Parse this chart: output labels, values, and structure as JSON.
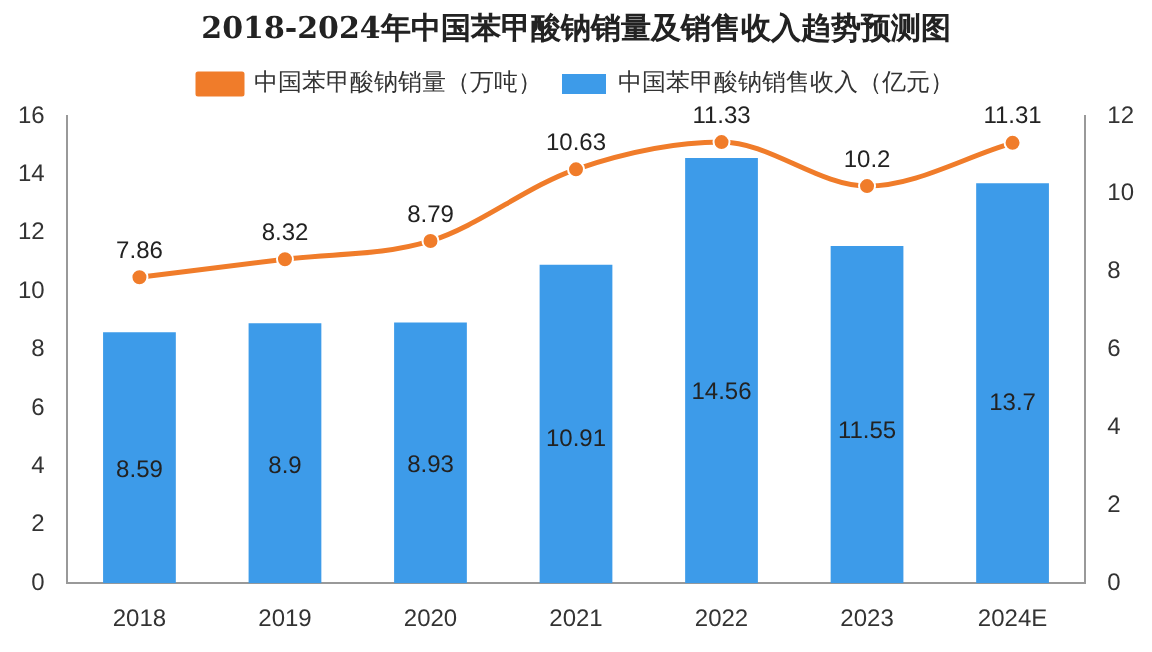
{
  "chart_data": {
    "type": "bar",
    "title": "2018-2024年中国苯甲酸钠销量及销售收入趋势预测图",
    "categories": [
      "2018",
      "2019",
      "2020",
      "2021",
      "2022",
      "2023",
      "2024E"
    ],
    "series": [
      {
        "name": "中国苯甲酸钠销售收入（亿元）",
        "color": "#3d9be9",
        "values": [
          8.59,
          8.9,
          8.93,
          10.91,
          14.56,
          11.55,
          13.7
        ]
      },
      {
        "name": "中国苯甲酸钠销量（万吨）",
        "type": "line",
        "axis": "y2",
        "color": "#f07c2a",
        "values": [
          7.86,
          8.32,
          8.79,
          10.63,
          11.33,
          10.2,
          11.31
        ]
      }
    ],
    "ylim": [
      0,
      16
    ],
    "yticks": [
      0,
      2,
      4,
      6,
      8,
      10,
      12,
      14,
      16
    ],
    "y2lim": [
      0,
      12
    ],
    "y2ticks": [
      0,
      2,
      4,
      6,
      8,
      10,
      12
    ],
    "data_labels": true,
    "legend": "top",
    "grid": false,
    "marker": "circle",
    "line_style": "solid"
  }
}
